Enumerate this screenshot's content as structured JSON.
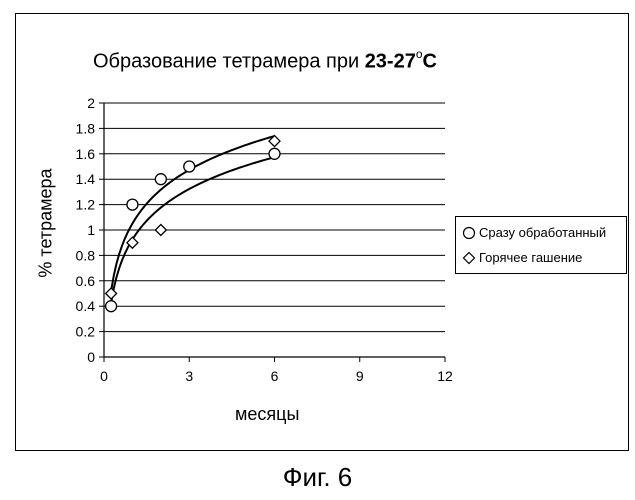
{
  "chart_data": {
    "type": "scatter",
    "title_text": "Образование тетрамера при ",
    "title_bold": "23-27",
    "title_degree": "o",
    "title_unit": "C",
    "xlabel": "месяцы",
    "ylabel": "% тетрамера",
    "xlim": [
      0,
      12
    ],
    "ylim": [
      0,
      2
    ],
    "x_ticks": [
      "0",
      "3",
      "6",
      "9",
      "12"
    ],
    "y_ticks": [
      "0",
      "0.2",
      "0.4",
      "0.6",
      "0.8",
      "1",
      "1.2",
      "1.4",
      "1.6",
      "1.8",
      "2"
    ],
    "grid": "horizontal",
    "legend_position": "right",
    "series": [
      {
        "name": "Сразу обработанный",
        "marker": "circle",
        "points": [
          [
            0.25,
            0.4
          ],
          [
            1,
            1.2
          ],
          [
            2,
            1.4
          ],
          [
            3,
            1.5
          ],
          [
            6,
            1.6
          ]
        ],
        "trendline": "logarithmic"
      },
      {
        "name": "Горячее гашение",
        "marker": "diamond",
        "points": [
          [
            0.25,
            0.5
          ],
          [
            1,
            0.9
          ],
          [
            2,
            1.0
          ],
          [
            6,
            1.7
          ]
        ],
        "trendline": "logarithmic"
      }
    ]
  },
  "caption": "Фиг. 6"
}
